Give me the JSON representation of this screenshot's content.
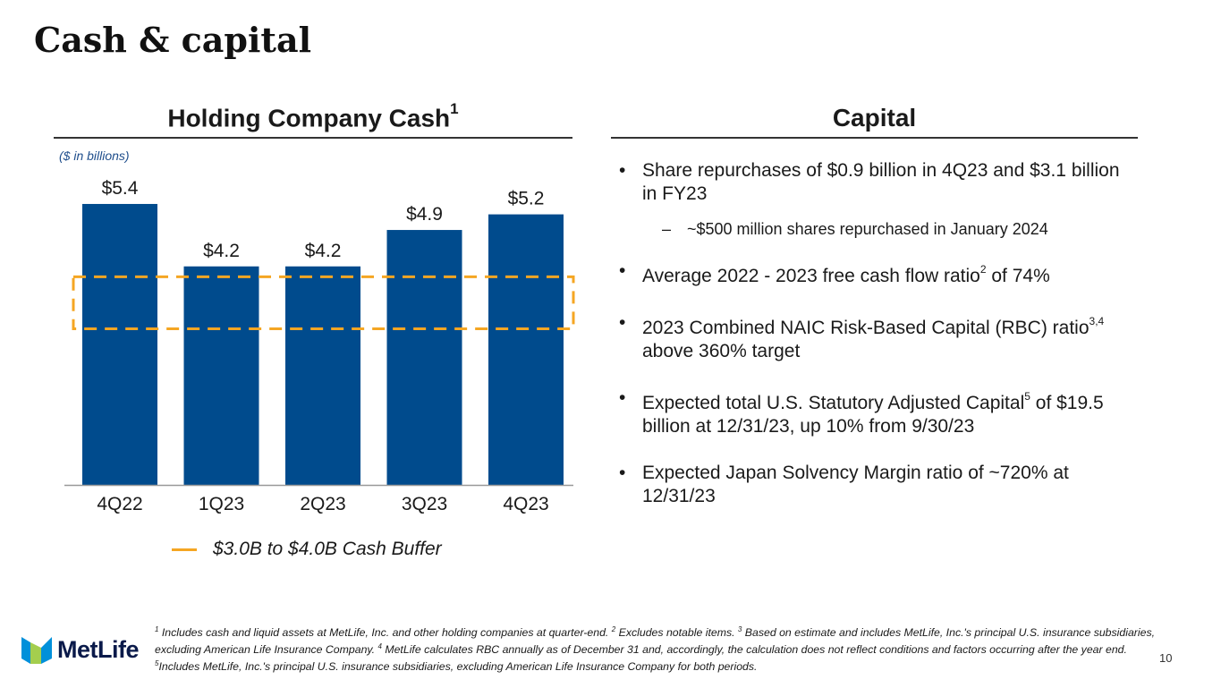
{
  "page": {
    "title": "Cash & capital",
    "page_number": "10"
  },
  "left_section": {
    "heading": "Holding Company Cash",
    "heading_sup": "1",
    "units_note": "($ in billions)",
    "legend_label": "$3.0B to $4.0B Cash Buffer"
  },
  "right_section": {
    "heading": "Capital",
    "bullets": [
      {
        "text": "Share repurchases of $0.9 billion in 4Q23 and $3.1 billion in FY23"
      },
      {
        "text": "~$500 million shares repurchased in January 2024"
      },
      {
        "text_a": "Average 2022 - 2023 free cash flow ratio",
        "sup": "2",
        "text_b": " of 74%"
      },
      {
        "text_a": "2023 Combined NAIC Risk-Based Capital (RBC) ratio",
        "sup": "3,4",
        "text_b": " above 360% target"
      },
      {
        "text_a": "Expected total U.S. Statutory Adjusted Capital",
        "sup": "5",
        "text_b": " of $19.5 billion at 12/31/23, up 10% from 9/30/23"
      },
      {
        "text": "Expected Japan Solvency Margin ratio of ~720% at 12/31/23"
      }
    ],
    "bullet_symbol": "•",
    "dash_symbol": "–"
  },
  "footnotes": {
    "n1": "1",
    "t1": " Includes cash and liquid assets at MetLife, Inc. and other holding companies at quarter-end. ",
    "n2": "2",
    "t2": " Excludes notable items. ",
    "n3": "3",
    "t3": " Based on estimate and includes MetLife, Inc.'s principal U.S. insurance subsidiaries, excluding American Life Insurance Company. ",
    "n4": "4",
    "t4": " MetLife calculates RBC annually as of December 31 and, accordingly, the calculation does not reflect conditions and factors occurring after the year end. ",
    "n5": "5",
    "t5": "Includes MetLife, Inc.'s principal U.S. insurance subsidiaries, excluding American Life Insurance Company for both periods."
  },
  "logo": {
    "text": "MetLife"
  },
  "colors": {
    "bar": "#004b8d",
    "buffer": "#f5a623",
    "logo_blue": "#0090da",
    "logo_green": "#a4ce4e"
  },
  "chart_data": {
    "type": "bar",
    "title": "Holding Company Cash",
    "ylabel": "$ in billions",
    "categories": [
      "4Q22",
      "1Q23",
      "2Q23",
      "3Q23",
      "4Q23"
    ],
    "values": [
      5.4,
      4.2,
      4.2,
      4.9,
      5.2
    ],
    "labels": [
      "$5.4",
      "$4.2",
      "$4.2",
      "$4.9",
      "$5.2"
    ],
    "ylim": [
      0,
      6.5
    ],
    "buffer_band": {
      "low": 3.0,
      "high": 4.0,
      "label": "$3.0B to $4.0B Cash Buffer"
    },
    "grid": false,
    "legend": "bottom"
  }
}
